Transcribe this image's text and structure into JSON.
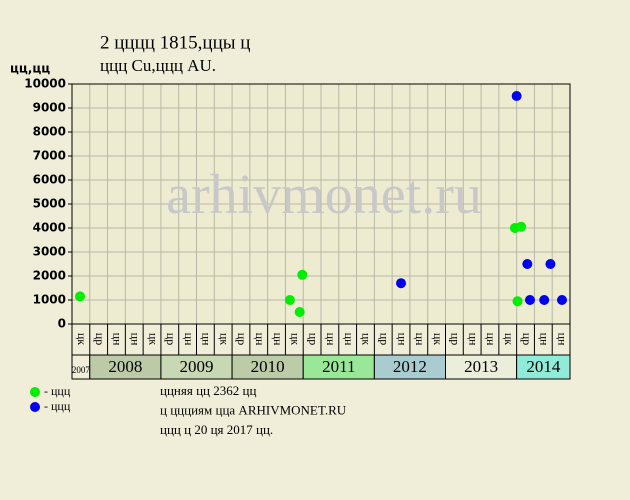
{
  "chart_data": {
    "type": "scatter",
    "title": "2 цццц 1815,ццы ц",
    "subtitle": "ццц Cu,ццц AU.",
    "y_label": "цц,цц",
    "watermark": "arhivmonet.ru",
    "categories": [
      "цк",
      "цр",
      "цн",
      "цн",
      "цк",
      "цр",
      "цн",
      "цн",
      "цк",
      "цр",
      "цн",
      "цн",
      "цк",
      "цр",
      "цн",
      "цн",
      "цк",
      "цр",
      "цн",
      "цн",
      "цк",
      "цр",
      "цн",
      "цн",
      "цк",
      "цр",
      "цн",
      "цн"
    ],
    "year_bands": [
      {
        "label": "2007",
        "span": [
          0,
          1
        ],
        "color": "#f0eed8"
      },
      {
        "label": "2008",
        "span": [
          1,
          5
        ],
        "color": "#bccaa8"
      },
      {
        "label": "2009",
        "span": [
          5,
          9
        ],
        "color": "#c8d8b4"
      },
      {
        "label": "2010",
        "span": [
          9,
          13
        ],
        "color": "#bccca8"
      },
      {
        "label": "2011",
        "span": [
          13,
          17
        ],
        "color": "#98e898"
      },
      {
        "label": "2012",
        "span": [
          17,
          21
        ],
        "color": "#a8ccd0"
      },
      {
        "label": "2013",
        "span": [
          21,
          25
        ],
        "color": "#eceedc"
      },
      {
        "label": "2014",
        "span": [
          25,
          28
        ],
        "color": "#90ecd8"
      }
    ],
    "xlim": [
      0,
      28
    ],
    "ylim": [
      0,
      10000
    ],
    "yticks": [
      0,
      1000,
      2000,
      3000,
      4000,
      5000,
      6000,
      7000,
      8000,
      9000,
      10000
    ],
    "grid": true,
    "series": [
      {
        "name": "- ццц",
        "color": "#00ee00",
        "x": [
          0.45,
          12.25,
          12.8,
          12.95,
          24.9,
          25.25,
          25.05
        ],
        "values": [
          1150,
          1000,
          500,
          2050,
          4000,
          4050,
          950
        ]
      },
      {
        "name": "- ццц",
        "color": "#0000ee",
        "x": [
          18.5,
          25.0,
          25.6,
          25.75,
          26.55,
          26.9,
          27.55
        ],
        "values": [
          1700,
          9500,
          2500,
          1000,
          1000,
          2500,
          1000
        ]
      }
    ],
    "notes": [
      "ццняя цц 2362 цц",
      "ц ццциям цца ARHIVMONET.RU",
      "ццц ц 20 ця 2017 цц."
    ]
  }
}
